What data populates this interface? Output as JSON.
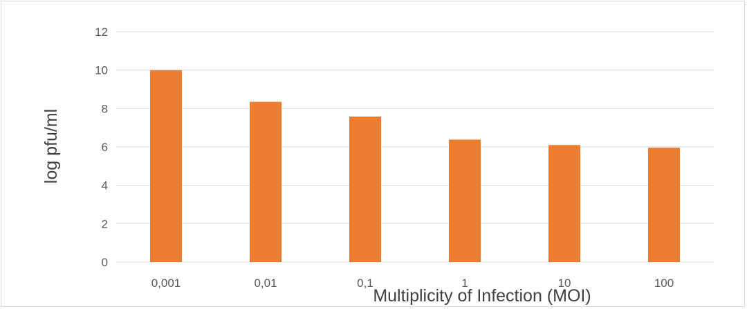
{
  "chart_data": {
    "type": "bar",
    "categories": [
      "0,001",
      "0,01",
      "0,1",
      "1",
      "10",
      "100"
    ],
    "values": [
      10.0,
      8.35,
      7.58,
      6.38,
      6.1,
      5.96
    ],
    "title": "",
    "xlabel": "Multiplicity of Infection (MOI)",
    "ylabel": "log pfu/ml",
    "ylim": [
      0,
      12
    ],
    "yticks": [
      "0",
      "2",
      "4",
      "6",
      "8",
      "10",
      "12"
    ],
    "grid": true,
    "legend": "none",
    "colors": {
      "bar": "#ED7D31",
      "grid": "#d9d9d9",
      "axis_text": "#595959"
    }
  }
}
